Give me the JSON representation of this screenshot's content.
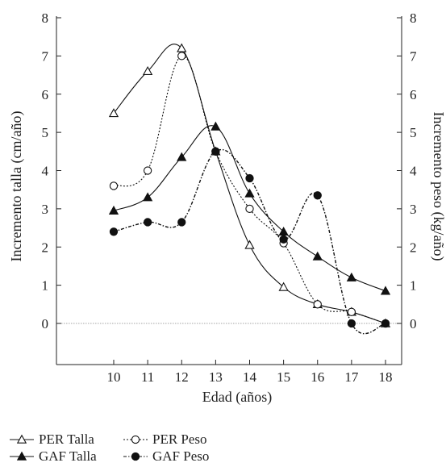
{
  "chart_data": {
    "type": "line",
    "xlabel": "Edad (años)",
    "ylabel_left": "Incremento talla (cm/año)",
    "ylabel_right": "Incremento peso (kg/año)",
    "xlim": [
      8.5,
      18.5
    ],
    "ylim": [
      -1.3,
      8
    ],
    "x_ticks": [
      10,
      11,
      12,
      13,
      14,
      15,
      16,
      17,
      18
    ],
    "y_ticks": [
      0,
      1,
      2,
      3,
      4,
      5,
      6,
      7,
      8
    ],
    "reference_line_y": 0,
    "grid": false,
    "legend_position": "bottom-left",
    "series": [
      {
        "name": "PER Talla",
        "marker": "triangle-open",
        "line": "solid",
        "x": [
          10,
          11,
          12,
          13,
          14,
          15,
          16,
          17,
          18
        ],
        "y": [
          5.5,
          6.6,
          7.2,
          4.5,
          2.05,
          0.95,
          0.5,
          0.3,
          0.0
        ]
      },
      {
        "name": "GAF Talla",
        "marker": "triangle-filled",
        "line": "solid",
        "x": [
          10,
          11,
          12,
          13,
          14,
          15,
          16,
          17,
          18
        ],
        "y": [
          2.95,
          3.3,
          4.35,
          5.15,
          3.4,
          2.4,
          1.75,
          1.2,
          0.85
        ]
      },
      {
        "name": "PER Peso",
        "marker": "circle-open",
        "line": "dotted",
        "x": [
          10,
          11,
          12,
          13,
          14,
          15,
          16,
          17,
          18
        ],
        "y": [
          3.6,
          4.0,
          7.0,
          4.5,
          3.0,
          2.1,
          0.5,
          0.3,
          0.0
        ]
      },
      {
        "name": "GAF Peso",
        "marker": "circle-filled",
        "line": "dash-dot",
        "x": [
          10,
          11,
          12,
          13,
          14,
          15,
          16,
          17,
          18
        ],
        "y": [
          2.4,
          2.65,
          2.65,
          4.5,
          3.8,
          2.2,
          3.35,
          0.0,
          0.0
        ]
      }
    ]
  }
}
